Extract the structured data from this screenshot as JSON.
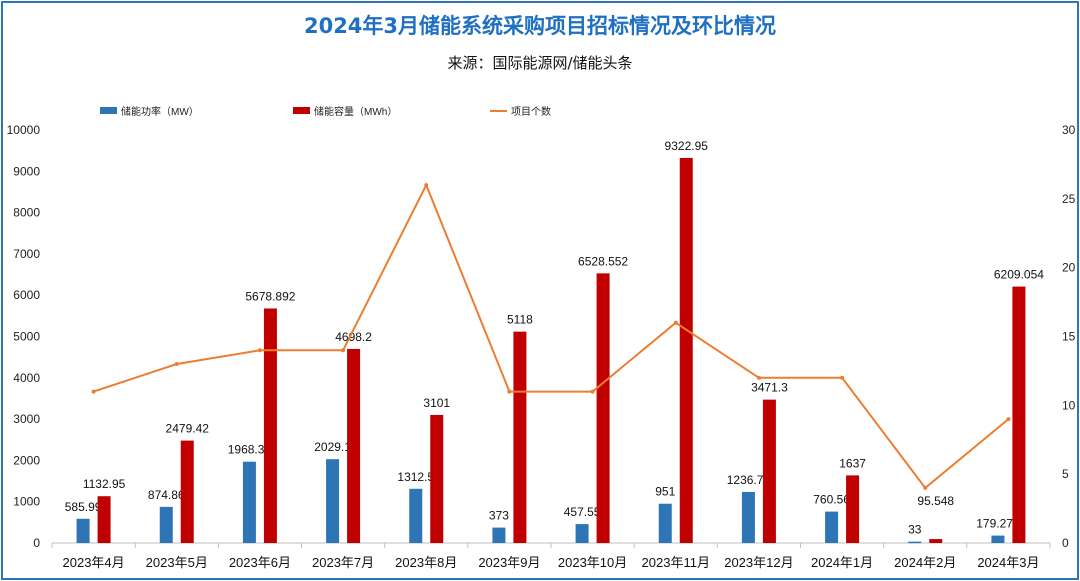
{
  "chart_data": {
    "type": "bar",
    "title": "2024年3月储能系统采购项目招标情况及环比情况",
    "subtitle": "来源：国际能源网/储能头条",
    "categories": [
      "2023年4月",
      "2023年5月",
      "2023年6月",
      "2023年7月",
      "2023年8月",
      "2023年9月",
      "2023年10月",
      "2023年11月",
      "2023年12月",
      "2024年1月",
      "2024年2月",
      "2024年3月"
    ],
    "series": [
      {
        "name": "储能功率（MW）",
        "type": "bar",
        "axis": "left",
        "color": "#2e75b6",
        "values": [
          585.99,
          874.86,
          1968.35,
          2029.1,
          1312.5,
          373,
          457.55,
          951,
          1236.75,
          760.56,
          33,
          179.275
        ],
        "labels": [
          "585.99",
          "874.86",
          "1968.35",
          "2029.1",
          "1312.5",
          "373",
          "457.55",
          "951",
          "1236.75",
          "760.56",
          "33",
          "179.275"
        ]
      },
      {
        "name": "储能容量（MWh）",
        "type": "bar",
        "axis": "left",
        "color": "#c00000",
        "values": [
          1132.95,
          2479.42,
          5678.892,
          4698.2,
          3101,
          5118,
          6528.552,
          9322.95,
          3471.3,
          1637,
          95.548,
          6209.054
        ],
        "labels": [
          "1132.95",
          "2479.42",
          "5678.892",
          "4698.2",
          "3101",
          "5118",
          "6528.552",
          "9322.95",
          "3471.3",
          "1637",
          "95.548",
          "6209.054"
        ]
      },
      {
        "name": "项目个数",
        "type": "line",
        "axis": "right",
        "color": "#ed7d31",
        "values": [
          11,
          13,
          14,
          14,
          26,
          11,
          11,
          16,
          12,
          12,
          4,
          9
        ]
      }
    ],
    "yleft": {
      "lim": [
        0,
        10000
      ],
      "ticks": [
        "0",
        "1000",
        "2000",
        "3000",
        "4000",
        "5000",
        "6000",
        "7000",
        "8000",
        "9000",
        "10000"
      ]
    },
    "yright": {
      "lim": [
        0,
        30
      ],
      "ticks": [
        "0",
        "5",
        "10",
        "15",
        "20",
        "25",
        "30"
      ]
    },
    "legend": "top",
    "grid": false
  }
}
